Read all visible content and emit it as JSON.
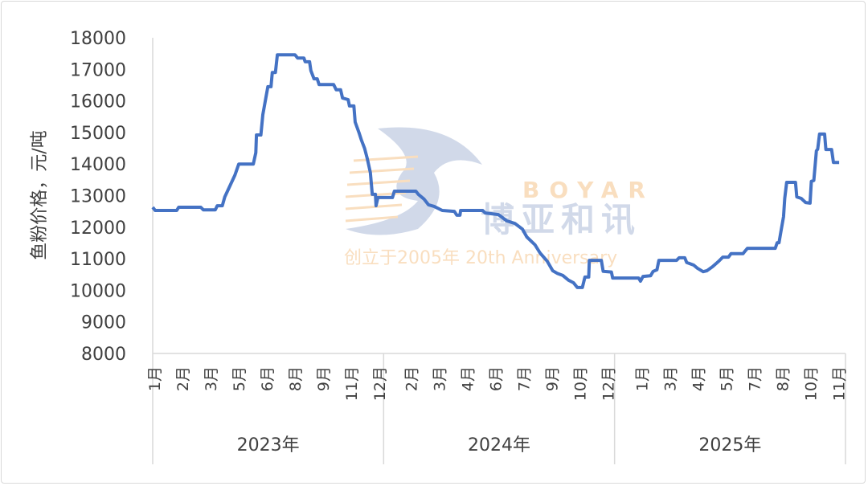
{
  "chart_data": {
    "type": "line",
    "title": "",
    "xlabel": "",
    "ylabel": "鱼粉价格，元/吨",
    "ylim": [
      8000,
      18000
    ],
    "yticks": [
      "8000",
      "9000",
      "10000",
      "11000",
      "12000",
      "13000",
      "14000",
      "15000",
      "16000",
      "17000",
      "18000"
    ],
    "grid": false,
    "line_color": "#4472C4",
    "years": [
      {
        "label": "2023年",
        "year": 2023,
        "months": [
          "1月",
          "2月",
          "3月",
          "5月",
          "6月",
          "8月",
          "9月",
          "11月",
          "12月"
        ]
      },
      {
        "label": "2024年",
        "year": 2024,
        "months": [
          "2月",
          "3月",
          "4月",
          "6月",
          "7月",
          "9月",
          "10月",
          "12月"
        ]
      },
      {
        "label": "2025年",
        "year": 2025,
        "months": [
          "1月",
          "3月",
          "4月",
          "5月",
          "7月",
          "8月",
          "10月",
          "11月"
        ]
      }
    ],
    "points": [
      [
        "2023-01-01",
        12630
      ],
      [
        "2023-01-05",
        12530
      ],
      [
        "2023-02-08",
        12530
      ],
      [
        "2023-02-11",
        12630
      ],
      [
        "2023-03-18",
        12630
      ],
      [
        "2023-03-22",
        12550
      ],
      [
        "2023-04-10",
        12550
      ],
      [
        "2023-04-13",
        12680
      ],
      [
        "2023-04-21",
        12680
      ],
      [
        "2023-04-25",
        12960
      ],
      [
        "2023-05-11",
        13650
      ],
      [
        "2023-05-17",
        14000
      ],
      [
        "2023-06-09",
        14000
      ],
      [
        "2023-06-13",
        14360
      ],
      [
        "2023-06-14",
        14920
      ],
      [
        "2023-06-21",
        14920
      ],
      [
        "2023-06-24",
        15560
      ],
      [
        "2023-06-28",
        16000
      ],
      [
        "2023-07-02",
        16450
      ],
      [
        "2023-07-07",
        16450
      ],
      [
        "2023-07-09",
        16900
      ],
      [
        "2023-07-14",
        16900
      ],
      [
        "2023-07-17",
        17460
      ],
      [
        "2023-08-14",
        17460
      ],
      [
        "2023-08-18",
        17360
      ],
      [
        "2023-08-28",
        17360
      ],
      [
        "2023-08-30",
        17240
      ],
      [
        "2023-09-06",
        17240
      ],
      [
        "2023-09-08",
        16960
      ],
      [
        "2023-09-13",
        16700
      ],
      [
        "2023-09-18",
        16700
      ],
      [
        "2023-09-21",
        16520
      ],
      [
        "2023-10-14",
        16520
      ],
      [
        "2023-10-18",
        16350
      ],
      [
        "2023-10-25",
        16350
      ],
      [
        "2023-10-28",
        16090
      ],
      [
        "2023-11-06",
        16040
      ],
      [
        "2023-11-08",
        15840
      ],
      [
        "2023-11-15",
        15840
      ],
      [
        "2023-11-17",
        15330
      ],
      [
        "2023-11-23",
        15000
      ],
      [
        "2023-11-27",
        14750
      ],
      [
        "2023-12-02",
        14490
      ],
      [
        "2023-12-06",
        14180
      ],
      [
        "2023-12-11",
        13730
      ],
      [
        "2023-12-14",
        13040
      ],
      [
        "2023-12-19",
        13040
      ],
      [
        "2023-12-20",
        12680
      ],
      [
        "2023-12-23",
        12940
      ],
      [
        "2024-01-15",
        12940
      ],
      [
        "2024-01-18",
        13140
      ],
      [
        "2024-02-21",
        13140
      ],
      [
        "2024-02-25",
        13040
      ],
      [
        "2024-03-05",
        12890
      ],
      [
        "2024-03-12",
        12710
      ],
      [
        "2024-03-21",
        12660
      ],
      [
        "2024-04-03",
        12530
      ],
      [
        "2024-04-22",
        12500
      ],
      [
        "2024-04-26",
        12380
      ],
      [
        "2024-05-01",
        12380
      ],
      [
        "2024-05-02",
        12530
      ],
      [
        "2024-06-06",
        12530
      ],
      [
        "2024-06-10",
        12450
      ],
      [
        "2024-07-01",
        12400
      ],
      [
        "2024-07-14",
        12200
      ],
      [
        "2024-07-27",
        12120
      ],
      [
        "2024-08-08",
        11940
      ],
      [
        "2024-08-15",
        11690
      ],
      [
        "2024-08-28",
        11440
      ],
      [
        "2024-09-05",
        11180
      ],
      [
        "2024-09-16",
        10930
      ],
      [
        "2024-09-25",
        10620
      ],
      [
        "2024-10-02",
        10540
      ],
      [
        "2024-10-11",
        10470
      ],
      [
        "2024-10-20",
        10320
      ],
      [
        "2024-10-28",
        10240
      ],
      [
        "2024-11-03",
        10090
      ],
      [
        "2024-11-11",
        10090
      ],
      [
        "2024-11-15",
        10420
      ],
      [
        "2024-11-21",
        10420
      ],
      [
        "2024-11-22",
        10950
      ],
      [
        "2024-12-11",
        10950
      ],
      [
        "2024-12-14",
        10600
      ],
      [
        "2024-12-27",
        10580
      ],
      [
        "2024-12-29",
        10390
      ],
      [
        "2025-02-08",
        10390
      ],
      [
        "2025-02-11",
        10290
      ],
      [
        "2025-02-15",
        10440
      ],
      [
        "2025-02-27",
        10460
      ],
      [
        "2025-03-03",
        10600
      ],
      [
        "2025-03-09",
        10650
      ],
      [
        "2025-03-12",
        10950
      ],
      [
        "2025-04-09",
        10950
      ],
      [
        "2025-04-13",
        11030
      ],
      [
        "2025-04-22",
        11030
      ],
      [
        "2025-04-25",
        10880
      ],
      [
        "2025-05-06",
        10800
      ],
      [
        "2025-05-12",
        10700
      ],
      [
        "2025-05-21",
        10590
      ],
      [
        "2025-05-27",
        10620
      ],
      [
        "2025-06-05",
        10750
      ],
      [
        "2025-06-15",
        10930
      ],
      [
        "2025-06-21",
        11050
      ],
      [
        "2025-06-30",
        11050
      ],
      [
        "2025-07-04",
        11160
      ],
      [
        "2025-07-23",
        11160
      ],
      [
        "2025-07-27",
        11260
      ],
      [
        "2025-07-30",
        11330
      ],
      [
        "2025-09-12",
        11330
      ],
      [
        "2025-09-15",
        11510
      ],
      [
        "2025-09-18",
        11510
      ],
      [
        "2025-09-21",
        11870
      ],
      [
        "2025-09-25",
        12330
      ],
      [
        "2025-09-27",
        12910
      ],
      [
        "2025-09-30",
        13420
      ],
      [
        "2025-10-14",
        13420
      ],
      [
        "2025-10-16",
        12960
      ],
      [
        "2025-10-23",
        12910
      ],
      [
        "2025-10-30",
        12780
      ],
      [
        "2025-11-06",
        12760
      ],
      [
        "2025-11-08",
        13450
      ],
      [
        "2025-11-12",
        13480
      ],
      [
        "2025-11-16",
        14420
      ],
      [
        "2025-11-18",
        14470
      ],
      [
        "2025-11-21",
        14950
      ],
      [
        "2025-11-29",
        14950
      ],
      [
        "2025-12-01",
        14460
      ],
      [
        "2025-12-10",
        14460
      ],
      [
        "2025-12-13",
        14050
      ],
      [
        "2025-12-22",
        14050
      ]
    ]
  },
  "watermark": {
    "brand": "BOYAR",
    "name_cn": "博亚和讯",
    "slogan": "创立于2005年 20th Anniversary",
    "brand_color": "#F8D9B4",
    "name_color": "#C9D3E6"
  }
}
